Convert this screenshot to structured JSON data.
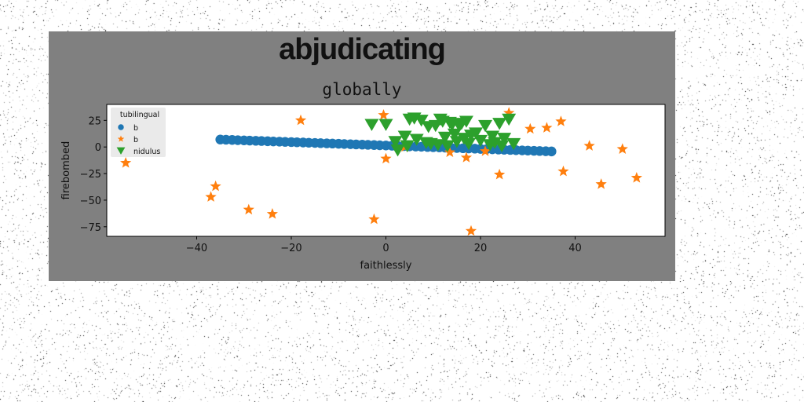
{
  "chart_data": {
    "type": "scatter",
    "title": "abjudicating",
    "subtitle": "globally",
    "xlabel": "faithlessly",
    "ylabel": "firebombed",
    "xlim": [
      -59,
      59
    ],
    "ylim": [
      -84,
      40
    ],
    "xticks": [
      -40,
      -20,
      0,
      20,
      40
    ],
    "yticks": [
      25,
      0,
      -25,
      -50,
      -75
    ],
    "grid": false,
    "legend": {
      "title": "tubilingual",
      "placement": "top-left"
    },
    "series": [
      {
        "name": "b",
        "marker": "circle",
        "color": "#1f77b4",
        "x": [
          -35,
          -33.8,
          -32.5,
          -31.3,
          -30,
          -28.8,
          -27.5,
          -26.3,
          -25,
          -23.8,
          -22.5,
          -21.3,
          -20,
          -18.8,
          -17.5,
          -16.3,
          -15,
          -13.8,
          -12.5,
          -11.3,
          -10,
          -8.8,
          -7.5,
          -6.3,
          -5,
          -3.8,
          -2.5,
          -1.3,
          0,
          1.3,
          2.5,
          3.8,
          5,
          6.3,
          7.5,
          8.8,
          10,
          11.3,
          12.5,
          13.8,
          15,
          16.3,
          17.5,
          18.8,
          20,
          21.3,
          22.5,
          23.8,
          25,
          26.3,
          27.5,
          28.8,
          30,
          31.3,
          32.5,
          33.8,
          35
        ],
        "y": [
          7,
          6.8,
          6.6,
          6.4,
          6.2,
          6,
          5.8,
          5.6,
          5.4,
          5.2,
          5,
          4.8,
          4.6,
          4.4,
          4.2,
          4,
          3.8,
          3.6,
          3.4,
          3.2,
          3,
          2.8,
          2.6,
          2.4,
          2.2,
          2,
          1.8,
          1.6,
          1.4,
          1.2,
          1,
          0.8,
          0.6,
          0.4,
          0.2,
          0,
          -0.2,
          -0.4,
          -0.6,
          -0.8,
          -1,
          -1.2,
          -1.4,
          -1.6,
          -1.8,
          -2,
          -2.2,
          -2.4,
          -2.6,
          -2.8,
          -3,
          -3.2,
          -3.4,
          -3.6,
          -3.8,
          -4,
          -4.2
        ]
      },
      {
        "name": "b",
        "marker": "star",
        "color": "#ff7f0e",
        "x": [
          -55,
          -37,
          -36,
          -29,
          -24,
          -18,
          -2.5,
          -0.5,
          0,
          4,
          13.5,
          17,
          18,
          21,
          24,
          26,
          30.5,
          34,
          37,
          37.5,
          43,
          45.5,
          50,
          53
        ],
        "y": [
          -15,
          -47,
          -37,
          -59,
          -63,
          25,
          -68,
          30,
          -11,
          0,
          -5,
          -10,
          -79,
          -4,
          -26,
          32,
          17,
          18,
          24,
          -23,
          1,
          -35,
          -2,
          -29
        ]
      },
      {
        "name": "nidulus",
        "marker": "triangle_down",
        "color": "#2ca02c",
        "x": [
          -3,
          0,
          2,
          2.5,
          4,
          4.5,
          5,
          6,
          6.5,
          7.5,
          8.5,
          9,
          9.5,
          10.5,
          11,
          11.5,
          12,
          12.5,
          13,
          13.5,
          14,
          14.5,
          15,
          15.5,
          16,
          16.5,
          17,
          17.5,
          18,
          19,
          20,
          21,
          22,
          22.5,
          23,
          24,
          24.5,
          25,
          26,
          27
        ],
        "y": [
          21,
          21,
          5,
          -3,
          10,
          1,
          26,
          27,
          7,
          25,
          4,
          19,
          3,
          20,
          2,
          26,
          24,
          9,
          1,
          23,
          21,
          12,
          5,
          20,
          22,
          8,
          24,
          3,
          11,
          13,
          6,
          20,
          2,
          10,
          4,
          22,
          1,
          8,
          26,
          3
        ]
      }
    ]
  }
}
